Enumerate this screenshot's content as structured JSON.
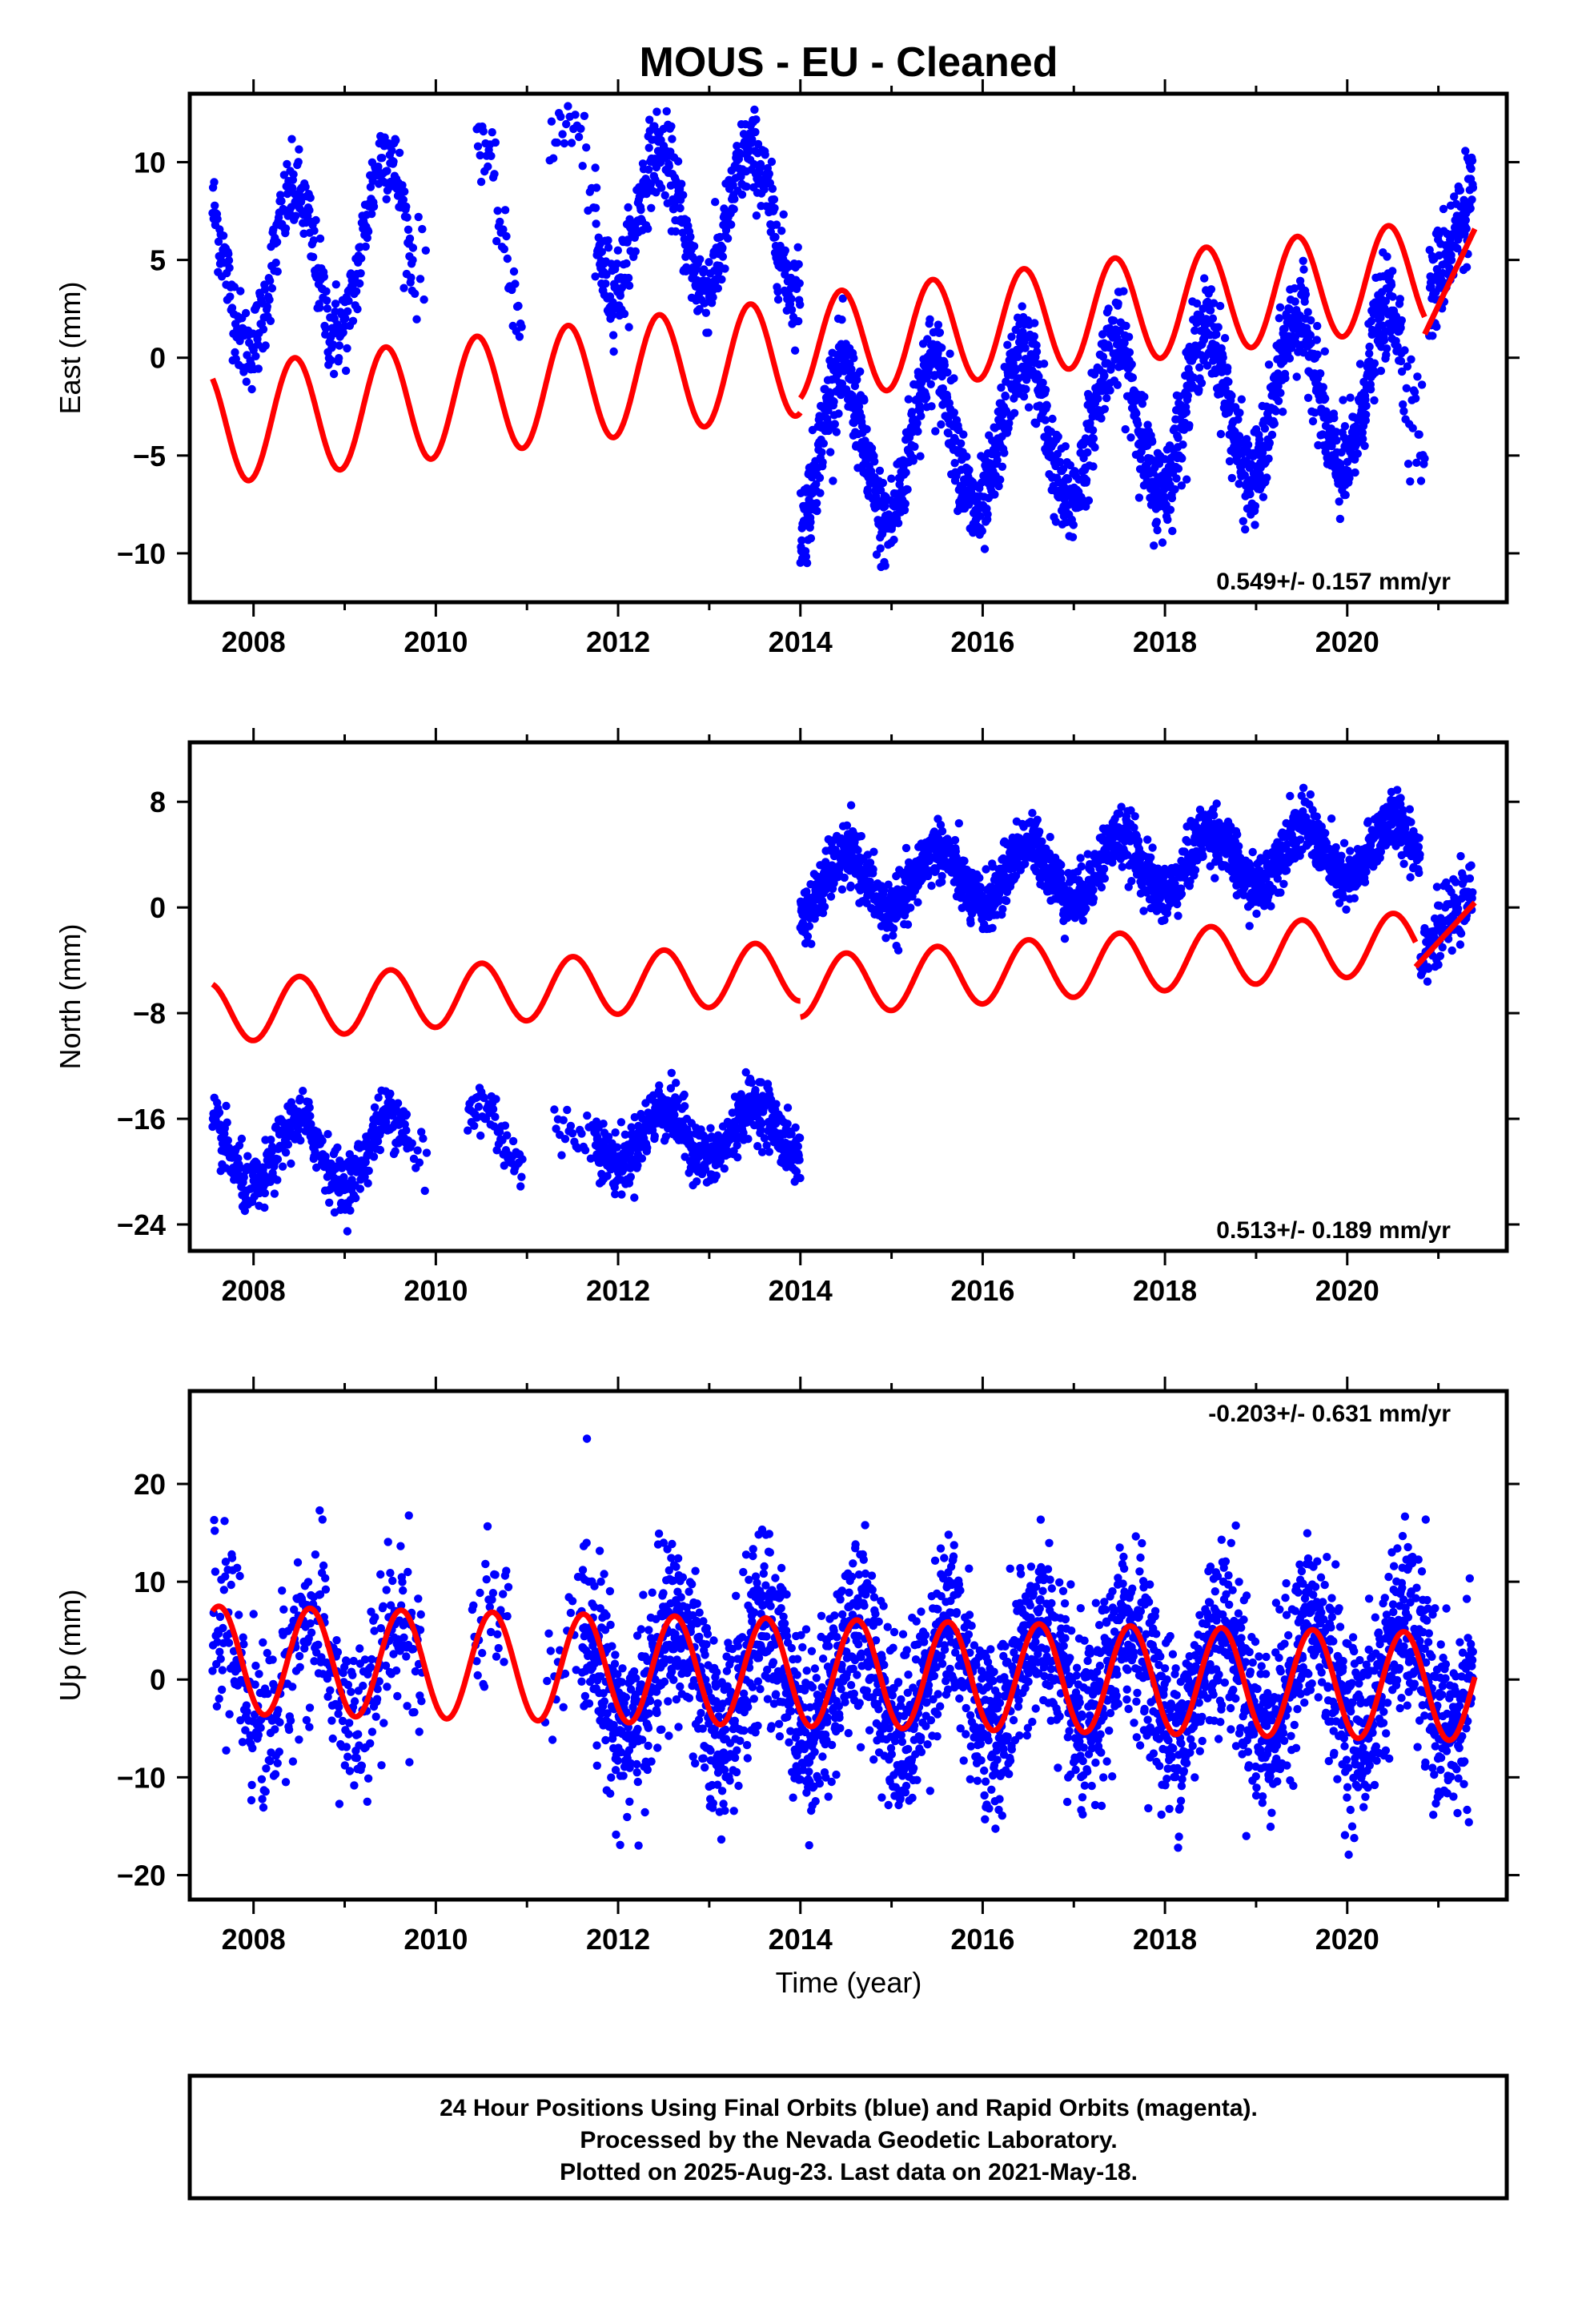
{
  "title": "MOUS  - EU - Cleaned",
  "colors": {
    "data": "#0000ff",
    "model": "#ff0000",
    "frame": "#000000"
  },
  "xlabel": "Time (year)",
  "footer": [
    "24 Hour Positions Using Final Orbits (blue) and Rapid Orbits (magenta).",
    "Processed by the Nevada Geodetic Laboratory.",
    "Plotted on 2025-Aug-23. Last data on 2021-May-18."
  ],
  "chart_data": [
    {
      "type": "scatter",
      "panel": "east",
      "ylabel": "East (mm)",
      "rate_label": "0.549+/- 0.157 mm/yr",
      "rate_position": "bottom-right",
      "xlim": [
        2007.3,
        2021.75
      ],
      "ylim": [
        -12.5,
        13.5
      ],
      "xticks": [
        "2008",
        "2010",
        "2012",
        "2014",
        "2016",
        "2018",
        "2020"
      ],
      "yticks": [
        "10",
        "5",
        "0",
        "−5",
        "−10"
      ],
      "grid": false,
      "series": [
        {
          "kind": "points",
          "color": "#0000ff",
          "segments": [
            {
              "t0": 2007.55,
              "t1": 2008.9,
              "mean": 4.5,
              "amp": 4.0,
              "peak": 0.45,
              "sd": 1.1,
              "step": 0.006
            },
            {
              "t0": 2008.9,
              "t1": 2009.75,
              "mean": 6.0,
              "amp": 4.5,
              "peak": 0.45,
              "sd": 1.1,
              "step": 0.006
            },
            {
              "t0": 2009.75,
              "t1": 2009.9,
              "mean": 4.5,
              "amp": 0.0,
              "peak": 0.45,
              "sd": 1.2,
              "step": 0.02
            },
            {
              "t0": 2010.45,
              "t1": 2010.95,
              "mean": 7.0,
              "amp": 4.5,
              "peak": 0.45,
              "sd": 1.0,
              "step": 0.012
            },
            {
              "t0": 2011.25,
              "t1": 2011.75,
              "mean": 9.0,
              "amp": 3.0,
              "peak": 0.45,
              "sd": 1.0,
              "step": 0.02
            },
            {
              "t0": 2011.75,
              "t1": 2014.0,
              "mean": 7.0,
              "amp": 3.5,
              "peak": 0.45,
              "sd": 1.1,
              "step": 0.0045
            },
            {
              "t0": 2014.0,
              "t1": 2020.6,
              "mean": -5.0,
              "amp": 4.0,
              "peak": 0.45,
              "sd": 1.2,
              "trend": 0.55,
              "step": 0.0035
            },
            {
              "t0": 2020.6,
              "t1": 2020.85,
              "mean": -2.0,
              "amp": 3.0,
              "peak": 0.45,
              "sd": 1.5,
              "step": 0.01
            },
            {
              "t0": 2020.9,
              "t1": 2021.38,
              "mean": 3.0,
              "amp": 0.0,
              "peak": 0.45,
              "sd": 1.3,
              "trend": 12.0,
              "step": 0.004
            }
          ]
        },
        {
          "kind": "model",
          "color": "#ff0000",
          "jump_at": 2014.0,
          "pieces": [
            {
              "t0": 2007.55,
              "t1": 2014.0,
              "a": -3.5,
              "b": 0.55,
              "ref": 2007.55,
              "amp": 3.0,
              "peak": 0.45
            },
            {
              "t0": 2014.0,
              "t1": 2020.85,
              "a": 0.5,
              "b": 0.55,
              "ref": 2014.0,
              "amp": 2.7,
              "peak": 0.45
            },
            {
              "t0": 2020.85,
              "t1": 2021.4,
              "a": 1.2,
              "b": 9.8,
              "ref": 2020.85,
              "amp": 0.0,
              "peak": 0.45
            }
          ]
        }
      ]
    },
    {
      "type": "scatter",
      "panel": "north",
      "ylabel": "North (mm)",
      "rate_label": "0.513+/- 0.189 mm/yr",
      "rate_position": "bottom-right",
      "xlim": [
        2007.3,
        2021.75
      ],
      "ylim": [
        -26.0,
        12.5
      ],
      "xticks": [
        "2008",
        "2010",
        "2012",
        "2014",
        "2016",
        "2018",
        "2020"
      ],
      "yticks": [
        "8",
        "0",
        "−8",
        "−16",
        "−24"
      ],
      "grid": false,
      "series": [
        {
          "kind": "points",
          "color": "#0000ff",
          "segments": [
            {
              "t0": 2007.55,
              "t1": 2009.7,
              "mean": -19.0,
              "amp": 2.5,
              "peak": 0.5,
              "sd": 1.1,
              "trend": 0.4,
              "step": 0.005
            },
            {
              "t0": 2009.7,
              "t1": 2009.9,
              "mean": -19.5,
              "amp": 0.0,
              "peak": 0.5,
              "sd": 2.0,
              "step": 0.02
            },
            {
              "t0": 2010.35,
              "t1": 2010.95,
              "mean": -17.5,
              "amp": 2.5,
              "peak": 0.5,
              "sd": 1.2,
              "step": 0.01
            },
            {
              "t0": 2011.3,
              "t1": 2011.75,
              "mean": -17.0,
              "amp": 0.0,
              "peak": 0.5,
              "sd": 1.0,
              "step": 0.02
            },
            {
              "t0": 2011.75,
              "t1": 2014.0,
              "mean": -17.5,
              "amp": 2.0,
              "peak": 0.5,
              "sd": 1.1,
              "trend": 0.3,
              "step": 0.004
            },
            {
              "t0": 2014.0,
              "t1": 2020.8,
              "mean": 1.5,
              "amp": 2.2,
              "peak": 0.5,
              "sd": 1.1,
              "trend": 0.45,
              "step": 0.0035
            },
            {
              "t0": 2020.8,
              "t1": 2021.38,
              "mean": -3.5,
              "amp": 0.0,
              "peak": 0.5,
              "sd": 1.2,
              "trend": 8.0,
              "step": 0.005
            }
          ]
        },
        {
          "kind": "model",
          "color": "#ff0000",
          "jump_at": 2014.0,
          "pieces": [
            {
              "t0": 2007.55,
              "t1": 2014.0,
              "a": -8.0,
              "b": 0.5,
              "ref": 2007.55,
              "amp": 2.3,
              "peak": 0.5
            },
            {
              "t0": 2014.0,
              "t1": 2020.75,
              "a": -6.0,
              "b": 0.5,
              "ref": 2014.0,
              "amp": 2.3,
              "peak": 0.5
            },
            {
              "t0": 2020.75,
              "t1": 2021.4,
              "a": -4.5,
              "b": 7.5,
              "ref": 2020.75,
              "amp": 0.0,
              "peak": 0.5
            }
          ]
        }
      ]
    },
    {
      "type": "scatter",
      "panel": "up",
      "ylabel": "Up (mm)",
      "rate_label": "-0.203+/- 0.631 mm/yr",
      "rate_position": "top-right",
      "xlim": [
        2007.3,
        2021.75
      ],
      "ylim": [
        -22.5,
        29.5
      ],
      "xticks": [
        "2008",
        "2010",
        "2012",
        "2014",
        "2016",
        "2018",
        "2020"
      ],
      "yticks": [
        "20",
        "10",
        "0",
        "−10",
        "−20"
      ],
      "grid": false,
      "series": [
        {
          "kind": "points",
          "color": "#0000ff",
          "segments": [
            {
              "t0": 2007.55,
              "t1": 2009.85,
              "mean": 0.5,
              "amp": 5.5,
              "peak": 0.62,
              "sd": 4.5,
              "step": 0.006
            },
            {
              "t0": 2010.4,
              "t1": 2010.8,
              "mean": 1.5,
              "amp": 5.0,
              "peak": 0.62,
              "sd": 4.0,
              "step": 0.012
            },
            {
              "t0": 2011.2,
              "t1": 2011.6,
              "mean": 1.0,
              "amp": 5.0,
              "peak": 0.62,
              "sd": 4.0,
              "step": 0.02
            },
            {
              "t0": 2011.6,
              "t1": 2021.38,
              "mean": 0.0,
              "amp": 5.5,
              "peak": 0.62,
              "sd": 4.5,
              "step": 0.0032
            }
          ]
        },
        {
          "kind": "model",
          "color": "#ff0000",
          "pieces": [
            {
              "t0": 2007.55,
              "t1": 2021.4,
              "a": 2.0,
              "b": -0.2,
              "ref": 2007.55,
              "amp": 5.5,
              "peak": 0.62
            }
          ]
        }
      ]
    }
  ]
}
